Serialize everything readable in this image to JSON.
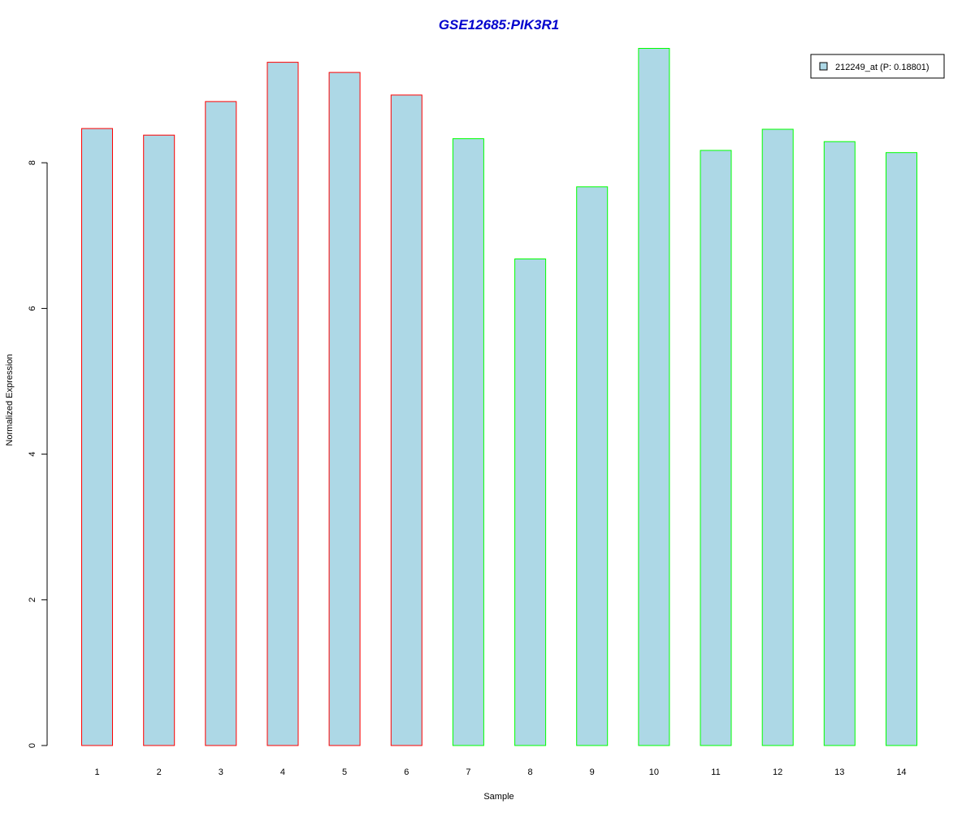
{
  "chart_data": {
    "type": "bar",
    "title": "GSE12685:PIK3R1",
    "xlabel": "Sample",
    "ylabel": "Normalized Expression",
    "categories": [
      "1",
      "2",
      "3",
      "4",
      "5",
      "6",
      "7",
      "8",
      "9",
      "10",
      "11",
      "12",
      "13",
      "14"
    ],
    "series": [
      {
        "name": "212249_at (P: 0.18801)",
        "values": [
          8.47,
          8.38,
          8.84,
          9.38,
          9.24,
          8.93,
          8.33,
          6.68,
          7.67,
          9.57,
          8.17,
          8.46,
          8.29,
          8.14
        ]
      }
    ],
    "group_border_colors": [
      "#ff0000",
      "#ff0000",
      "#ff0000",
      "#ff0000",
      "#ff0000",
      "#ff0000",
      "#00ff00",
      "#00ff00",
      "#00ff00",
      "#00ff00",
      "#00ff00",
      "#00ff00",
      "#00ff00",
      "#00ff00"
    ],
    "fill_color": "#add8e6",
    "title_color": "#0000cd",
    "yticks": [
      0,
      2,
      4,
      6,
      8
    ],
    "ylim": [
      0,
      9.6
    ],
    "legend_position": "top-right",
    "grid": false
  }
}
